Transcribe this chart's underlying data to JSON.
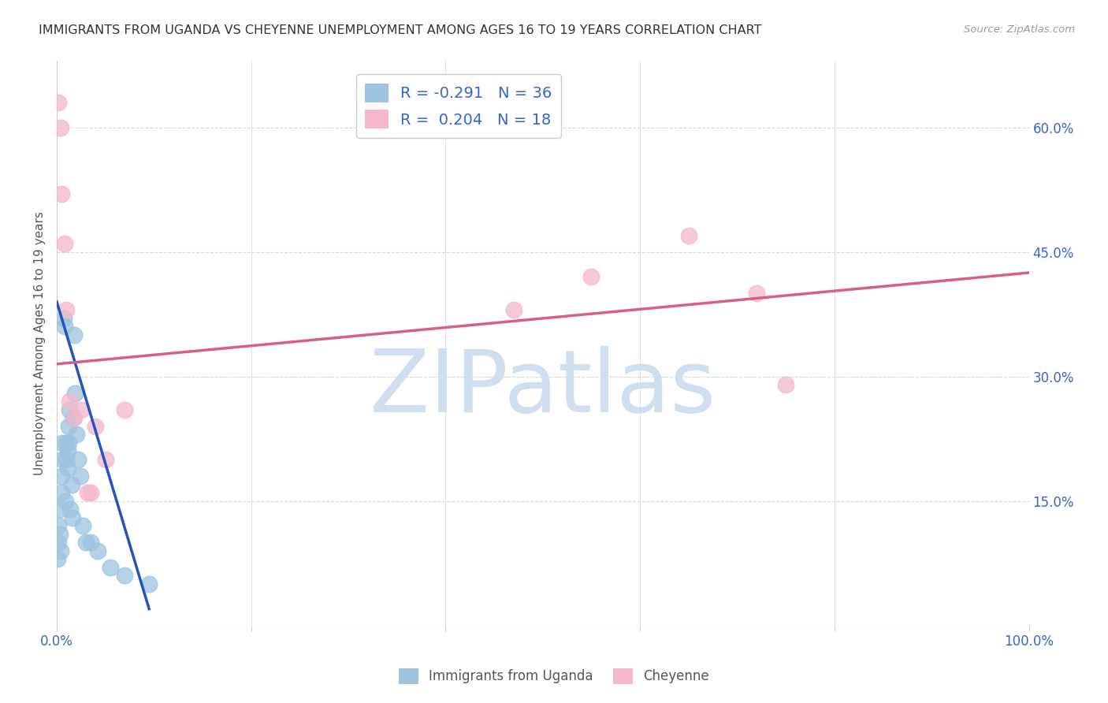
{
  "title": "IMMIGRANTS FROM UGANDA VS CHEYENNE UNEMPLOYMENT AMONG AGES 16 TO 19 YEARS CORRELATION CHART",
  "source": "Source: ZipAtlas.com",
  "ylabel": "Unemployment Among Ages 16 to 19 years",
  "blue_label": "Immigrants from Uganda",
  "pink_label": "Cheyenne",
  "blue_R": -0.291,
  "blue_N": 36,
  "pink_R": 0.204,
  "pink_N": 18,
  "blue_scatter_x": [
    0.1,
    0.2,
    0.2,
    0.3,
    0.3,
    0.4,
    0.5,
    0.5,
    0.6,
    0.6,
    0.7,
    0.8,
    0.9,
    1.0,
    1.0,
    1.1,
    1.1,
    1.2,
    1.2,
    1.3,
    1.4,
    1.5,
    1.6,
    1.7,
    1.8,
    1.9,
    2.0,
    2.2,
    2.4,
    2.7,
    3.0,
    3.5,
    4.2,
    5.5,
    7.0,
    9.5
  ],
  "blue_scatter_y": [
    8,
    12,
    10,
    14,
    11,
    9,
    18,
    16,
    22,
    20,
    37,
    36,
    15,
    22,
    20,
    21,
    19,
    24,
    22,
    26,
    14,
    17,
    13,
    25,
    35,
    28,
    23,
    20,
    18,
    12,
    10,
    10,
    9,
    7,
    6,
    5
  ],
  "pink_scatter_x": [
    0.2,
    0.4,
    0.5,
    0.8,
    1.0,
    1.3,
    1.8,
    2.5,
    3.2,
    3.5,
    4.0,
    5.0,
    7.0,
    47.0,
    55.0,
    65.0,
    72.0,
    75.0
  ],
  "pink_scatter_y": [
    63,
    60,
    52,
    46,
    38,
    27,
    25,
    26,
    16,
    16,
    24,
    20,
    26,
    38,
    42,
    47,
    40,
    29
  ],
  "blue_line_x": [
    0.0,
    9.5
  ],
  "blue_line_y": [
    39,
    2
  ],
  "pink_line_x": [
    0.0,
    100.0
  ],
  "pink_line_y": [
    31.5,
    42.5
  ],
  "xlim": [
    0,
    100
  ],
  "ylim": [
    0,
    68
  ],
  "ytick_vals_right": [
    15,
    30,
    45,
    60
  ],
  "ytick_labels_right": [
    "15.0%",
    "30.0%",
    "45.0%",
    "60.0%"
  ],
  "xtick_positions": [
    0,
    20,
    40,
    60,
    80,
    100
  ],
  "xtick_labels": [
    "0.0%",
    "",
    "",
    "",
    "",
    "100.0%"
  ],
  "blue_color": "#9dc3e0",
  "pink_color": "#f4b8cb",
  "blue_line_color": "#2255bb",
  "pink_line_color": "#d96080",
  "grid_color": "#cccccc",
  "title_color": "#333333",
  "axis_label_color": "#555555",
  "tick_label_color": "#3366cc",
  "watermark_color": "#d0dff0",
  "background_color": "#ffffff"
}
